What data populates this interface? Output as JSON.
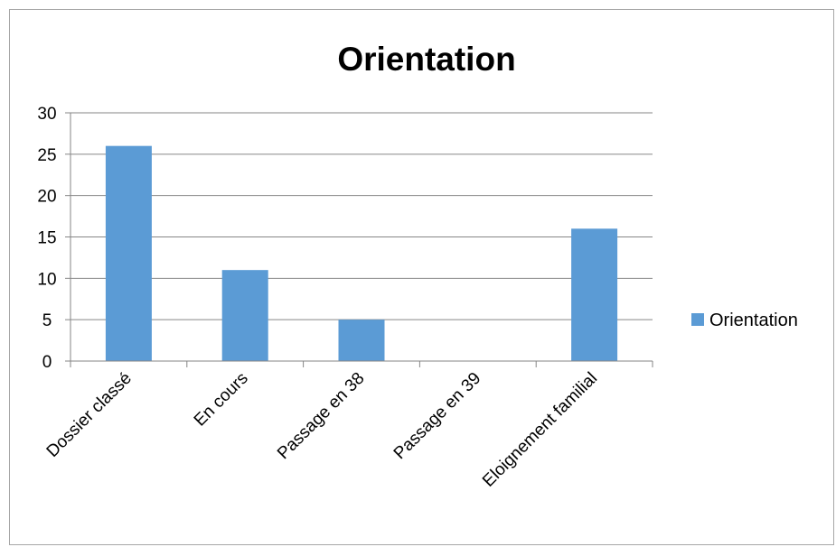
{
  "chart_data": {
    "type": "bar",
    "title": "Orientation",
    "xlabel": "",
    "ylabel": "",
    "categories": [
      "Dossier classé",
      "En cours",
      "Passage en 38",
      "Passage en 39",
      "Eloignement familial"
    ],
    "series": [
      {
        "name": "Orientation",
        "values": [
          26,
          11,
          5,
          0,
          16
        ],
        "color": "#5b9bd5"
      }
    ],
    "ylim": [
      0,
      30
    ],
    "yticks": [
      "0",
      "5",
      "10",
      "15",
      "20",
      "25",
      "30"
    ],
    "grid": true,
    "legend_position": "right",
    "gridline_color": "#868686",
    "axis_color": "#868686"
  }
}
